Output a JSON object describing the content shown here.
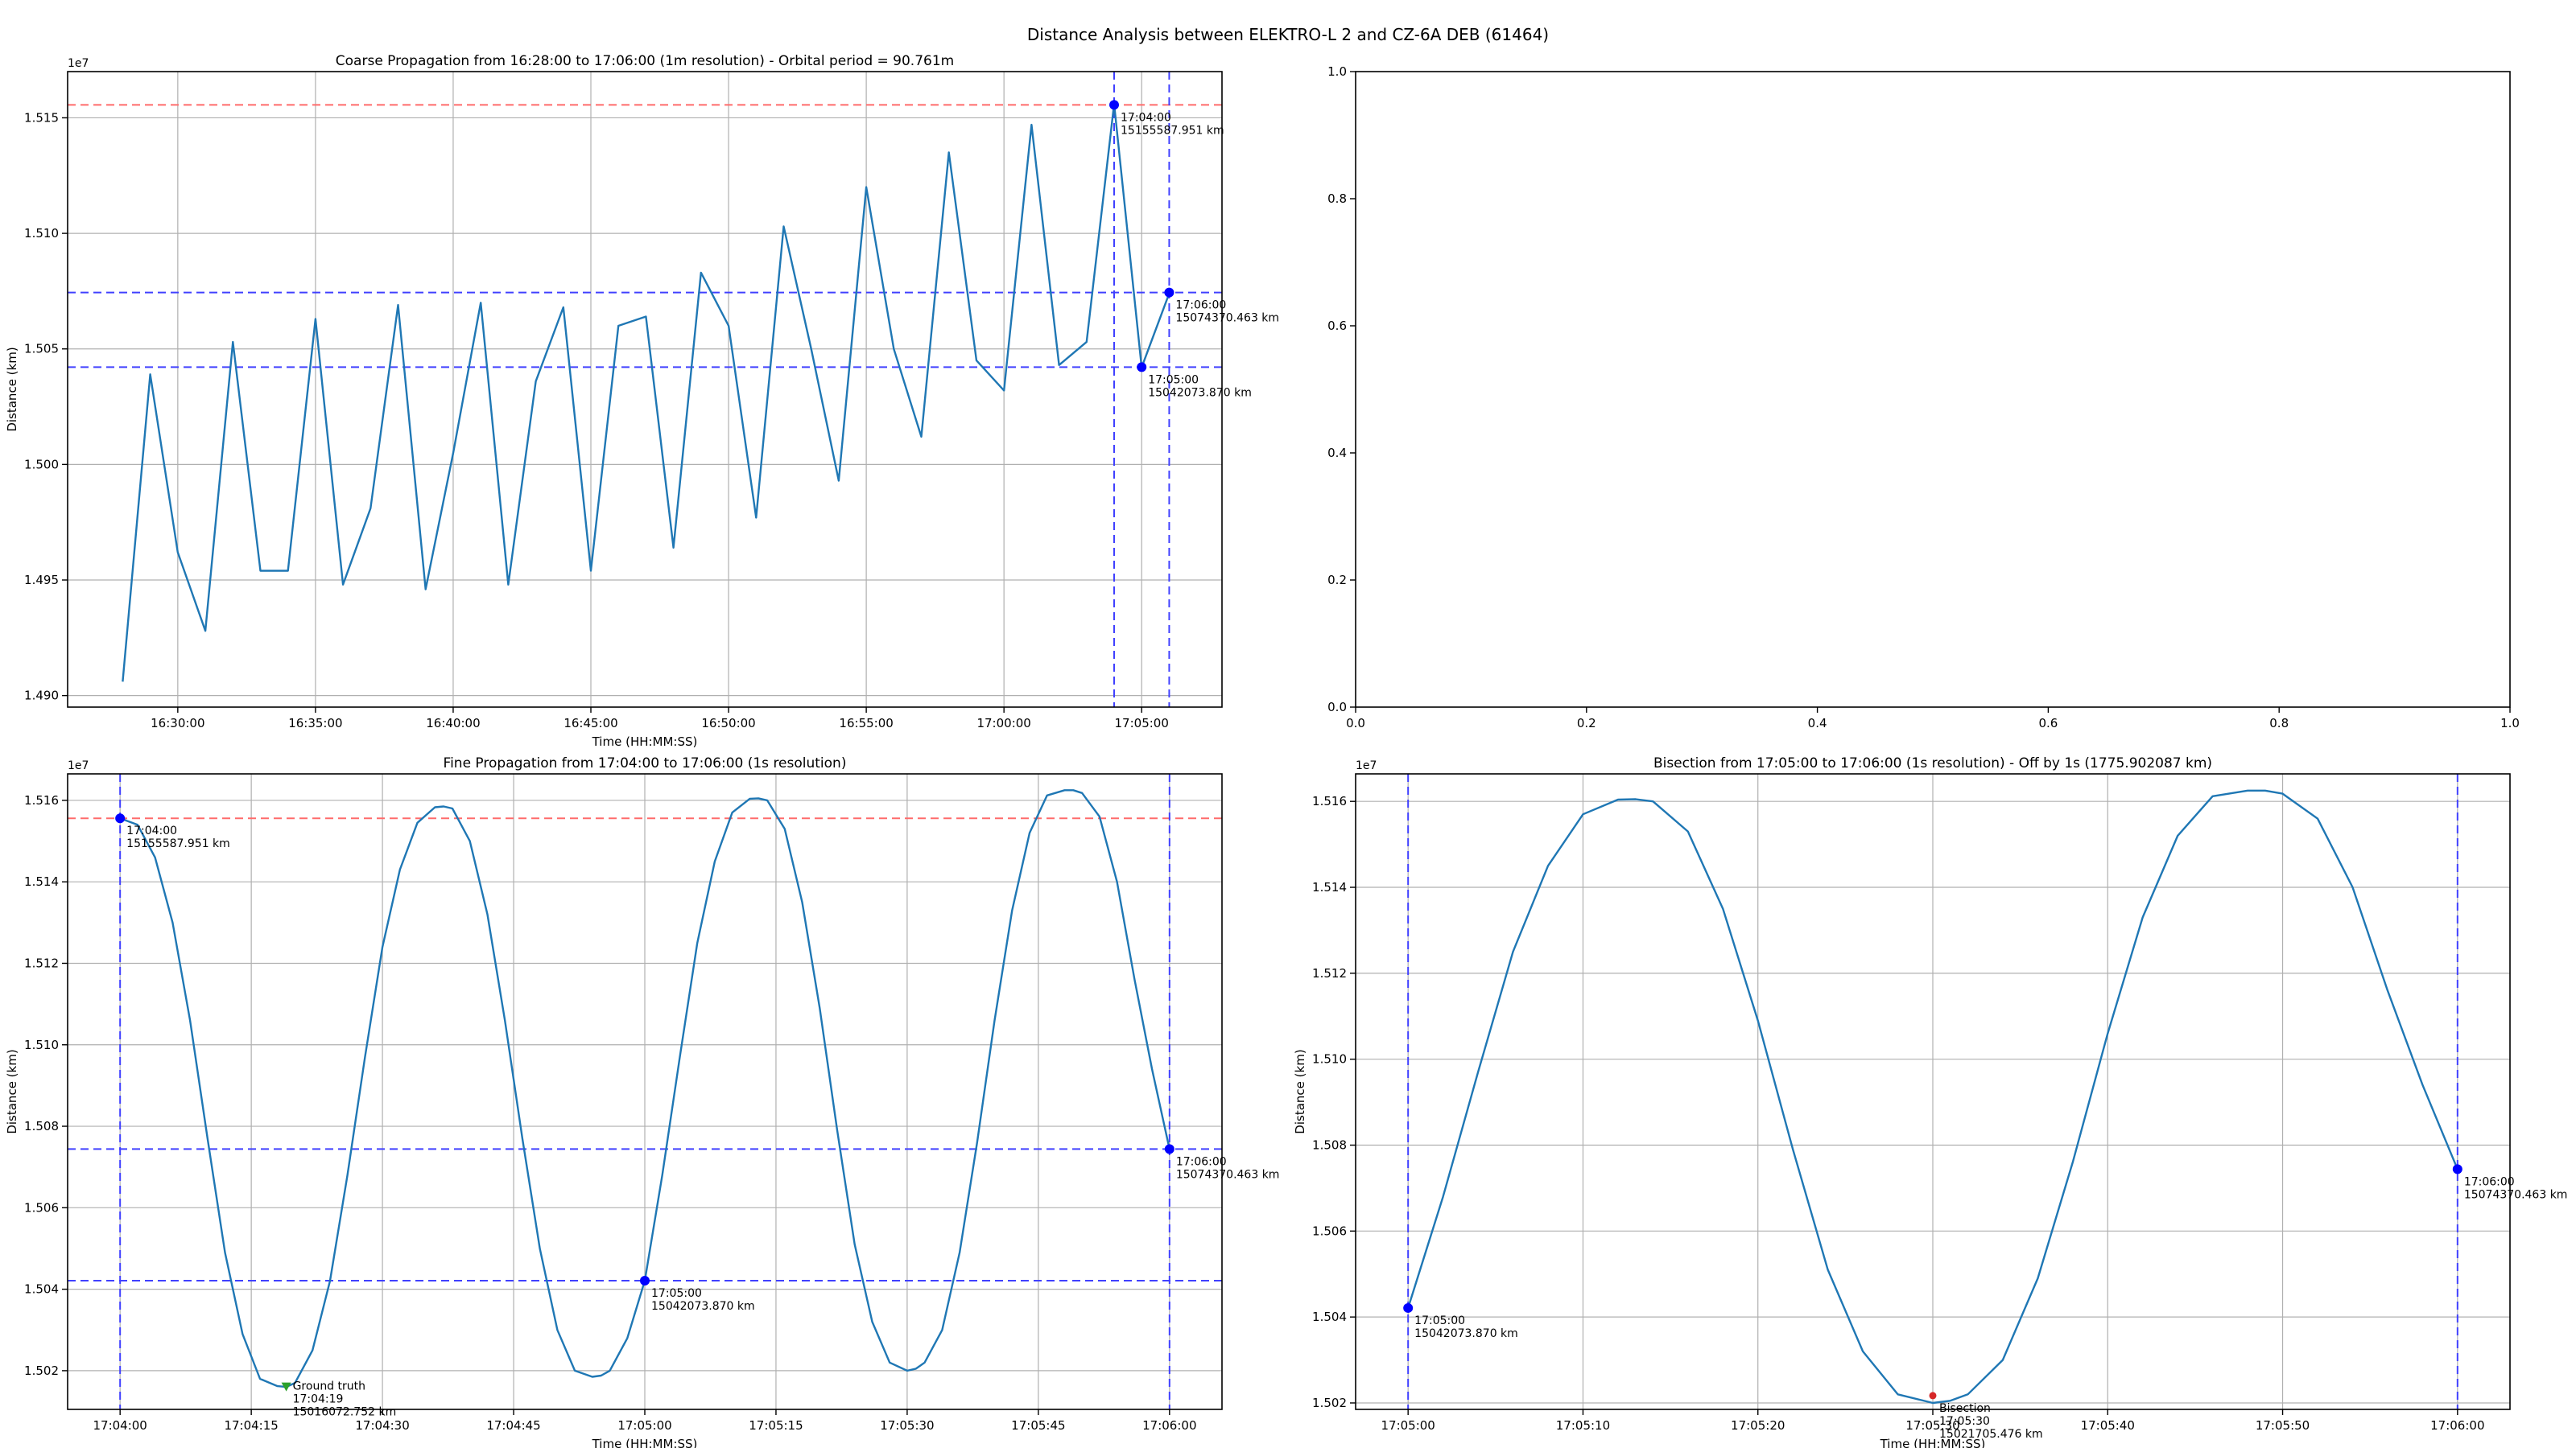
{
  "figure": {
    "suptitle": "Distance Analysis between ELEKTRO-L 2 and CZ-6A DEB (61464)"
  },
  "colors": {
    "series": "#1f77b4",
    "ref_red": "#ff6b6b",
    "ref_blue": "#4040ff",
    "point_blue": "#0000ff",
    "ground_truth": "#2ca02c",
    "bisection": "#d62728",
    "grid": "#b0b0b0"
  },
  "chart_data": [
    {
      "id": "coarse",
      "type": "line",
      "title": "Coarse Propagation from 16:28:00 to 17:06:00 (1m resolution) - Orbital period = 90.761m",
      "xlabel": "Time (HH:MM:SS)",
      "ylabel": "Distance (km)",
      "y_offset_text": "1e7",
      "xlim": [
        "16:26:00",
        "17:07:55"
      ],
      "ylim": [
        14.895,
        15.17
      ],
      "y_scale_label": "x 1e6 km",
      "x_ticks": [
        "16:30:00",
        "16:35:00",
        "16:40:00",
        "16:45:00",
        "16:50:00",
        "16:55:00",
        "17:00:00",
        "17:05:00"
      ],
      "y_ticks": [
        "1.490",
        "1.495",
        "1.500",
        "1.505",
        "1.510",
        "1.515"
      ],
      "grid": true,
      "series": [
        {
          "x": [
            "16:28:00",
            "16:29:00",
            "16:30:00",
            "16:31:00",
            "16:32:00",
            "16:33:00",
            "16:34:00",
            "16:35:00",
            "16:36:00",
            "16:37:00",
            "16:38:00",
            "16:39:00",
            "16:40:00",
            "16:41:00",
            "16:42:00",
            "16:43:00",
            "16:44:00",
            "16:45:00",
            "16:46:00",
            "16:47:00",
            "16:48:00",
            "16:49:00",
            "16:50:00",
            "16:51:00",
            "16:52:00",
            "16:53:00",
            "16:54:00",
            "16:55:00",
            "16:56:00",
            "16:57:00",
            "16:58:00",
            "16:59:00",
            "17:00:00",
            "17:01:00",
            "17:02:00",
            "17:03:00",
            "17:04:00",
            "17:05:00",
            "17:06:00"
          ],
          "y": [
            14.906,
            15.039,
            14.962,
            14.928,
            15.053,
            14.954,
            14.954,
            15.063,
            14.948,
            14.981,
            15.069,
            14.946,
            15.005,
            15.07,
            14.948,
            15.036,
            15.068,
            14.954,
            15.06,
            15.064,
            14.964,
            15.083,
            15.06,
            14.977,
            15.103,
            15.05,
            14.993,
            15.12,
            15.05,
            15.012,
            15.135,
            15.045,
            15.032,
            15.147,
            15.043,
            15.053,
            15.156,
            15.042,
            15.074
          ]
        }
      ],
      "hlines": [
        {
          "y": 15.1556,
          "color": "red"
        },
        {
          "y": 15.0744,
          "color": "blue"
        },
        {
          "y": 15.0421,
          "color": "blue"
        }
      ],
      "vlines": [
        {
          "x": "17:04:00",
          "color": "blue"
        },
        {
          "x": "17:06:00",
          "color": "blue"
        }
      ],
      "markers": [
        {
          "x": "17:04:00",
          "y": 15.1556,
          "color": "blue",
          "label": [
            "17:04:00",
            "15155587.951 km"
          ]
        },
        {
          "x": "17:05:00",
          "y": 15.0421,
          "color": "blue",
          "label": [
            "17:05:00",
            "15042073.870 km"
          ]
        },
        {
          "x": "17:06:00",
          "y": 15.0744,
          "color": "blue",
          "label": [
            "17:06:00",
            "15074370.463 km"
          ]
        }
      ]
    },
    {
      "id": "empty",
      "type": "line",
      "title": "",
      "xlabel": "",
      "ylabel": "",
      "xlim": [
        0,
        1
      ],
      "ylim": [
        0,
        1
      ],
      "x_ticks": [
        "0.0",
        "0.2",
        "0.4",
        "0.6",
        "0.8",
        "1.0"
      ],
      "y_ticks": [
        "0.0",
        "0.2",
        "0.4",
        "0.6",
        "0.8",
        "1.0"
      ],
      "grid": false,
      "series": []
    },
    {
      "id": "fine",
      "type": "line",
      "title": "Fine Propagation from 17:04:00 to 17:06:00 (1s resolution)",
      "xlabel": "Time (HH:MM:SS)",
      "ylabel": "Distance (km)",
      "y_offset_text": "1e7",
      "xlim": [
        "17:03:54",
        "17:06:06"
      ],
      "ylim": [
        15.0105,
        15.1665
      ],
      "y_scale_label": "x 1e6 km",
      "x_ticks": [
        "17:04:00",
        "17:04:15",
        "17:04:30",
        "17:04:45",
        "17:05:00",
        "17:05:15",
        "17:05:30",
        "17:05:45",
        "17:06:00"
      ],
      "y_ticks": [
        "1.502",
        "1.504",
        "1.506",
        "1.508",
        "1.510",
        "1.512",
        "1.514",
        "1.516"
      ],
      "grid": true,
      "series": [
        {
          "x": [
            "17:04:00",
            "17:04:02",
            "17:04:04",
            "17:04:06",
            "17:04:08",
            "17:04:10",
            "17:04:12",
            "17:04:14",
            "17:04:16",
            "17:04:18",
            "17:04:19",
            "17:04:20",
            "17:04:22",
            "17:04:24",
            "17:04:26",
            "17:04:28",
            "17:04:30",
            "17:04:32",
            "17:04:34",
            "17:04:36",
            "17:04:37",
            "17:04:38",
            "17:04:40",
            "17:04:42",
            "17:04:44",
            "17:04:46",
            "17:04:48",
            "17:04:50",
            "17:04:52",
            "17:04:54",
            "17:04:55",
            "17:04:56",
            "17:04:58",
            "17:05:00",
            "17:05:02",
            "17:05:04",
            "17:05:06",
            "17:05:08",
            "17:05:10",
            "17:05:12",
            "17:05:13",
            "17:05:14",
            "17:05:16",
            "17:05:18",
            "17:05:20",
            "17:05:22",
            "17:05:24",
            "17:05:26",
            "17:05:28",
            "17:05:30",
            "17:05:31",
            "17:05:32",
            "17:05:34",
            "17:05:36",
            "17:05:38",
            "17:05:40",
            "17:05:42",
            "17:05:44",
            "17:05:46",
            "17:05:48",
            "17:05:49",
            "17:05:50",
            "17:05:52",
            "17:05:54",
            "17:05:56",
            "17:05:58",
            "17:06:00"
          ],
          "y": [
            15.1556,
            15.154,
            15.146,
            15.13,
            15.106,
            15.077,
            15.049,
            15.029,
            15.018,
            15.0162,
            15.016,
            15.017,
            15.025,
            15.042,
            15.068,
            15.097,
            15.124,
            15.143,
            15.1545,
            15.1583,
            15.1585,
            15.158,
            15.15,
            15.132,
            15.106,
            15.077,
            15.05,
            15.03,
            15.02,
            15.0185,
            15.0188,
            15.02,
            15.028,
            15.0421,
            15.068,
            15.097,
            15.125,
            15.145,
            15.157,
            15.1604,
            15.1605,
            15.16,
            15.153,
            15.135,
            15.109,
            15.079,
            15.051,
            15.032,
            15.022,
            15.02,
            15.0205,
            15.022,
            15.03,
            15.049,
            15.076,
            15.106,
            15.133,
            15.152,
            15.1612,
            15.1625,
            15.1625,
            15.1618,
            15.156,
            15.14,
            15.116,
            15.094,
            15.0744
          ]
        }
      ],
      "hlines": [
        {
          "y": 15.1556,
          "color": "red"
        },
        {
          "y": 15.0744,
          "color": "blue"
        },
        {
          "y": 15.0421,
          "color": "blue"
        }
      ],
      "vlines": [
        {
          "x": "17:04:00",
          "color": "blue"
        },
        {
          "x": "17:06:00",
          "color": "blue"
        }
      ],
      "markers": [
        {
          "x": "17:04:00",
          "y": 15.1556,
          "color": "blue",
          "label": [
            "17:04:00",
            "15155587.951 km"
          ]
        },
        {
          "x": "17:05:00",
          "y": 15.0421,
          "color": "blue",
          "label": [
            "17:05:00",
            "15042073.870 km"
          ]
        },
        {
          "x": "17:06:00",
          "y": 15.0744,
          "color": "blue",
          "label": [
            "17:06:00",
            "15074370.463 km"
          ]
        },
        {
          "x": "17:04:19",
          "y": 15.0161,
          "color": "green",
          "shape": "triangle",
          "label": [
            "Ground truth",
            "17:04:19",
            "15016072.752 km"
          ]
        }
      ]
    },
    {
      "id": "bisection",
      "type": "line",
      "title": "Bisection from 17:05:00 to 17:06:00 (1s resolution) - Off by 1s (1775.902087 km)",
      "xlabel": "Time (HH:MM:SS)",
      "ylabel": "Distance (km)",
      "y_offset_text": "1e7",
      "xlim": [
        "17:04:57",
        "17:06:03"
      ],
      "ylim": [
        15.0185,
        15.1664
      ],
      "y_scale_label": "x 1e6 km",
      "x_ticks": [
        "17:05:00",
        "17:05:10",
        "17:05:20",
        "17:05:30",
        "17:05:40",
        "17:05:50",
        "17:06:00"
      ],
      "y_ticks": [
        "1.502",
        "1.504",
        "1.506",
        "1.508",
        "1.510",
        "1.512",
        "1.514",
        "1.516"
      ],
      "grid": true,
      "series": [
        {
          "x": [
            "17:05:00",
            "17:05:02",
            "17:05:04",
            "17:05:06",
            "17:05:08",
            "17:05:10",
            "17:05:12",
            "17:05:13",
            "17:05:14",
            "17:05:16",
            "17:05:18",
            "17:05:20",
            "17:05:22",
            "17:05:24",
            "17:05:26",
            "17:05:28",
            "17:05:30",
            "17:05:31",
            "17:05:32",
            "17:05:34",
            "17:05:36",
            "17:05:38",
            "17:05:40",
            "17:05:42",
            "17:05:44",
            "17:05:46",
            "17:05:48",
            "17:05:49",
            "17:05:50",
            "17:05:52",
            "17:05:54",
            "17:05:56",
            "17:05:58",
            "17:06:00"
          ],
          "y": [
            15.0421,
            15.068,
            15.097,
            15.125,
            15.145,
            15.157,
            15.1604,
            15.1605,
            15.16,
            15.153,
            15.135,
            15.109,
            15.079,
            15.051,
            15.032,
            15.022,
            15.02,
            15.0205,
            15.022,
            15.03,
            15.049,
            15.076,
            15.106,
            15.133,
            15.152,
            15.1612,
            15.1625,
            15.1625,
            15.1618,
            15.156,
            15.14,
            15.116,
            15.094,
            15.0744
          ]
        }
      ],
      "vlines": [
        {
          "x": "17:05:00",
          "color": "blue"
        },
        {
          "x": "17:06:00",
          "color": "blue"
        }
      ],
      "markers": [
        {
          "x": "17:05:00",
          "y": 15.0421,
          "color": "blue",
          "label": [
            "17:05:00",
            "15042073.870 km"
          ]
        },
        {
          "x": "17:06:00",
          "y": 15.0744,
          "color": "blue",
          "label": [
            "17:06:00",
            "15074370.463 km"
          ]
        },
        {
          "x": "17:05:30",
          "y": 15.0217,
          "color": "red",
          "label": [
            "Bisection",
            "17:05:30",
            "15021705.476 km"
          ]
        }
      ]
    }
  ]
}
